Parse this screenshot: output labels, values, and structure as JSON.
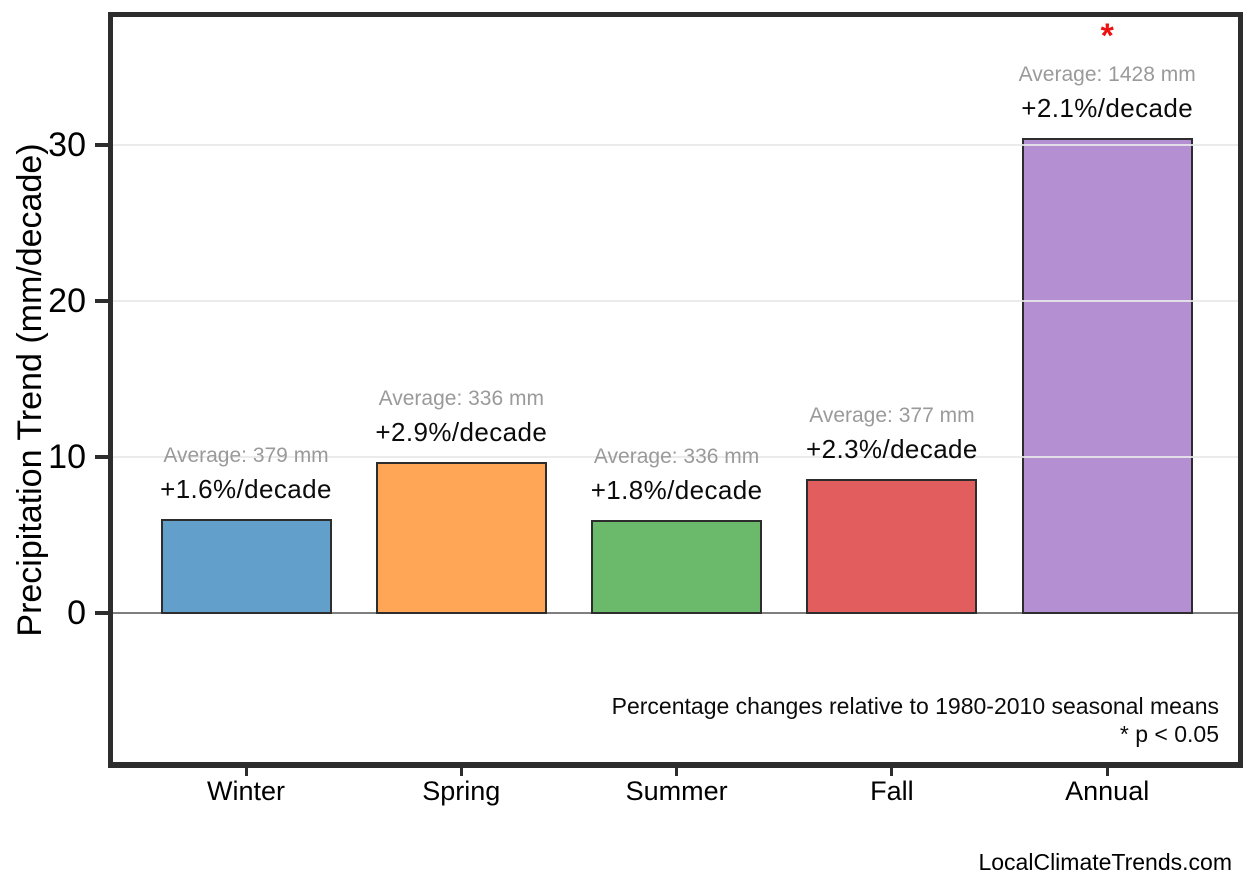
{
  "chart_data": {
    "type": "bar",
    "title": "",
    "xlabel": "",
    "ylabel": "Precipitation Trend (mm/decade)",
    "categories": [
      "Winter",
      "Spring",
      "Summer",
      "Fall",
      "Annual"
    ],
    "values": [
      6.06,
      9.74,
      6.05,
      8.67,
      30.52
    ],
    "value_unit": "mm/decade",
    "average_labels": [
      "Average: 379 mm",
      "Average: 336 mm",
      "Average: 336 mm",
      "Average: 377 mm",
      "Average: 1428 mm"
    ],
    "trend_labels": [
      "+1.6%/decade",
      "+2.9%/decade",
      "+1.8%/decade",
      "+2.3%/decade",
      "+2.1%/decade"
    ],
    "significant": [
      false,
      false,
      false,
      false,
      true
    ],
    "significance_marker": "*",
    "yticks": [
      0,
      10,
      20,
      30
    ],
    "ylim": [
      -9.5,
      38.3
    ],
    "grid": "horizontal light gridlines at 10/20/30, solid gray line at 0",
    "legend": "none",
    "bar_colors": [
      "#62A0CB",
      "#FFA656",
      "#6BB96B",
      "#E25E5E",
      "#B48FD1"
    ],
    "colors": {
      "bar_edge": "#2d2d2d",
      "spine": "#2d2d2d",
      "zero_line": "#7f7f7f",
      "gridline": "#e8e8e8",
      "average_text": "#9a9a9a",
      "trend_text": "#0b0b0b",
      "significance": "#ee1111"
    },
    "notes": {
      "line1": "Percentage changes relative to 1980-2010 seasonal means",
      "line2": "* p < 0.05"
    },
    "watermark": "LocalClimateTrends.com"
  }
}
